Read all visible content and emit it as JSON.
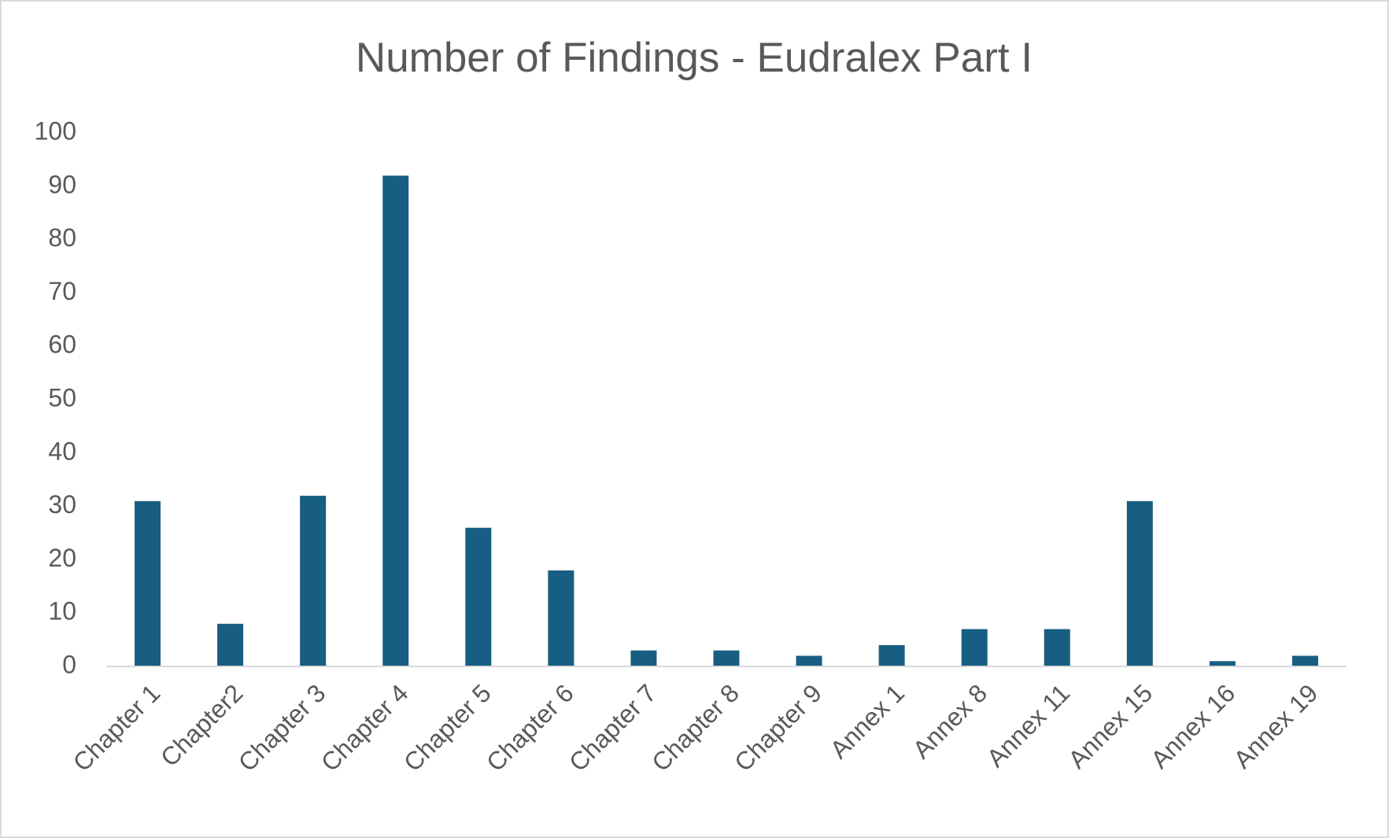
{
  "chart_data": {
    "type": "bar",
    "title": "Number of Findings - Eudralex Part I",
    "categories": [
      "Chapter 1",
      "Chapter2",
      "Chapter 3",
      "Chapter 4",
      "Chapter 5",
      "Chapter 6",
      "Chapter 7",
      "Chapter 8",
      "Chapter 9",
      "Annex 1",
      "Annex 8",
      "Annex 11",
      "Annex 15",
      "Annex 16",
      "Annex 19"
    ],
    "values": [
      31,
      8,
      32,
      92,
      26,
      18,
      3,
      3,
      2,
      4,
      7,
      7,
      31,
      1,
      2
    ],
    "color": "#175e82",
    "ylim": [
      0,
      100
    ],
    "yticks": [
      0,
      10,
      20,
      30,
      40,
      50,
      60,
      70,
      80,
      90,
      100
    ],
    "grid": false
  }
}
